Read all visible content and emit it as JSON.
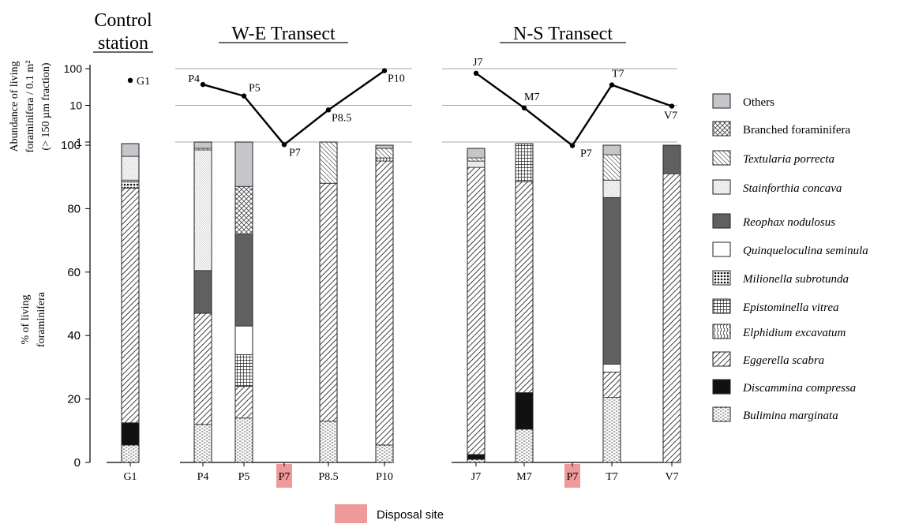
{
  "figure": {
    "groups": [
      {
        "title_lines": [
          "Control",
          "station"
        ]
      },
      {
        "title_lines": [
          "W-E Transect"
        ]
      },
      {
        "title_lines": [
          "N-S Transect"
        ]
      }
    ],
    "legend_footer": "Disposal site"
  },
  "chart_data": [
    {
      "type": "line",
      "title": "",
      "ylabel_lines": [
        "Abundance of living",
        "foraminifera / 0.1 m²",
        "(> 150 µm fraction)"
      ],
      "yscale": "log",
      "yticks": [
        1,
        10,
        100
      ],
      "yticklabels": [
        "1",
        "10",
        "100"
      ],
      "ylim": [
        1,
        100
      ],
      "grid": true,
      "series": [
        {
          "group": 0,
          "points": [
            {
              "label": "G1",
              "y": 48
            }
          ]
        },
        {
          "group": 1,
          "points": [
            {
              "label": "P4",
              "y": 37
            },
            {
              "label": "P5",
              "y": 18
            },
            {
              "label": "P7",
              "y": 0.85
            },
            {
              "label": "P8.5",
              "y": 7.5
            },
            {
              "label": "P10",
              "y": 88
            }
          ]
        },
        {
          "group": 2,
          "points": [
            {
              "label": "J7",
              "y": 75
            },
            {
              "label": "M7",
              "y": 8.5
            },
            {
              "label": "P7",
              "y": 0.8
            },
            {
              "label": "T7",
              "y": 36
            },
            {
              "label": "V7",
              "y": 9.5
            }
          ]
        }
      ]
    },
    {
      "type": "bar",
      "stacked": true,
      "title": "",
      "ylabel_lines": [
        "% of living",
        "foraminifera"
      ],
      "ylim": [
        0,
        100
      ],
      "yticks": [
        0,
        20,
        40,
        60,
        80,
        100
      ],
      "yticklabels": [
        "0",
        "20",
        "40",
        "60",
        "80",
        "100"
      ],
      "grid": false,
      "legend": "right",
      "categories": [
        {
          "name": "Bulimina marginata",
          "italic": true,
          "color": "#ffffff",
          "pattern": "pat-bulimina"
        },
        {
          "name": "Discammina compressa",
          "italic": true,
          "color": "#111111",
          "pattern": "solid-black"
        },
        {
          "name": "Eggerella scabra",
          "italic": true,
          "color": "#ffffff",
          "pattern": "pat-eggerella"
        },
        {
          "name": "Elphidium excavatum",
          "italic": true,
          "color": "#ffffff",
          "pattern": "pat-elphidium"
        },
        {
          "name": "Epistominella vitrea",
          "italic": true,
          "color": "#ffffff",
          "pattern": "pat-epistominella"
        },
        {
          "name": "Milionella subrotunda",
          "italic": true,
          "color": "#ffffff",
          "pattern": "pat-milionella"
        },
        {
          "name": "Quinqueloculina seminula",
          "italic": true,
          "color": "#ffffff",
          "pattern": "solid-white"
        },
        {
          "name": "Reophax nodulosus",
          "italic": true,
          "color": "#606060",
          "pattern": "solid-darkgray"
        },
        {
          "name": "Stainforthia concava",
          "italic": true,
          "color": "#ffffff",
          "pattern": "pat-stainforthia"
        },
        {
          "name": "Textularia porrecta",
          "italic": true,
          "color": "#ffffff",
          "pattern": "pat-textularia"
        },
        {
          "name": "Branched foraminifera",
          "italic": false,
          "color": "#ffffff",
          "pattern": "pat-branched"
        },
        {
          "name": "Others",
          "italic": false,
          "color": "#c4c6ca",
          "pattern": "solid-lightgray"
        }
      ],
      "stations": [
        {
          "group": 0,
          "label": "G1",
          "disposal": false,
          "values": [
            5.5,
            7,
            74,
            0,
            0,
            2,
            0.5,
            0,
            7.5,
            0,
            0,
            4
          ]
        },
        {
          "group": 1,
          "label": "P4",
          "disposal": false,
          "values": [
            12,
            0,
            35,
            0,
            0,
            0,
            0,
            13.5,
            38,
            0.5,
            0,
            2
          ]
        },
        {
          "group": 1,
          "label": "P5",
          "disposal": false,
          "values": [
            14,
            0,
            10,
            0,
            10,
            0,
            9,
            29,
            0,
            0,
            15,
            14
          ]
        },
        {
          "group": 1,
          "label": "P7",
          "disposal": true,
          "values": []
        },
        {
          "group": 1,
          "label": "P8.5",
          "disposal": false,
          "values": [
            13,
            0,
            75,
            0,
            0,
            0,
            0,
            0,
            0,
            13,
            0,
            0
          ]
        },
        {
          "group": 1,
          "label": "P10",
          "disposal": false,
          "values": [
            5.5,
            0,
            89.5,
            1,
            0,
            0,
            0,
            0,
            0,
            3,
            0,
            1
          ]
        },
        {
          "group": 2,
          "label": "J7",
          "disposal": false,
          "values": [
            1,
            1.5,
            90.5,
            0,
            0,
            0,
            0,
            0,
            2,
            1,
            0,
            3
          ]
        },
        {
          "group": 2,
          "label": "M7",
          "disposal": false,
          "values": [
            10.5,
            11.5,
            66.5,
            0,
            12,
            0,
            0,
            0,
            0,
            0,
            0,
            0
          ]
        },
        {
          "group": 2,
          "label": "P7",
          "disposal": true,
          "values": []
        },
        {
          "group": 2,
          "label": "T7",
          "disposal": false,
          "values": [
            20.5,
            0,
            8,
            0,
            0,
            0,
            2.5,
            52.5,
            5.5,
            8,
            0,
            3
          ]
        },
        {
          "group": 2,
          "label": "V7",
          "disposal": false,
          "values": [
            0,
            0,
            91,
            0,
            0,
            0,
            0,
            9,
            0,
            0,
            0,
            0
          ]
        }
      ]
    }
  ]
}
